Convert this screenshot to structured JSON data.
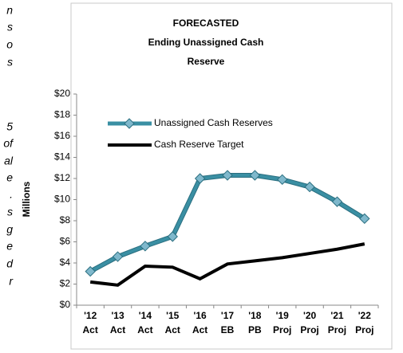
{
  "clipped_text": [
    "n",
    "s",
    "o",
    "s",
    "5",
    "of",
    "al",
    "e",
    ".",
    "s",
    "g",
    "e",
    "d",
    "r"
  ],
  "chart_data": {
    "type": "line",
    "title": [
      "FORECASTED",
      "Ending Unassigned Cash",
      "Reserve"
    ],
    "ylabel": "Millions",
    "categories": [
      "'12 Act",
      "'13 Act",
      "'14 Act",
      "'15 Act",
      "'16 Act",
      "'17 EB",
      "'18 PB",
      "'19 Proj",
      "'20 Proj",
      "'21 Proj",
      "'22 Proj"
    ],
    "series": [
      {
        "name": "Unassigned Cash Reserves",
        "color": "#3a8fa3",
        "marker": "diamond",
        "values": [
          3.2,
          4.6,
          5.6,
          6.5,
          12.0,
          12.3,
          12.3,
          11.9,
          11.2,
          9.8,
          8.2
        ]
      },
      {
        "name": "Cash Reserve Target",
        "color": "#000000",
        "values": [
          2.2,
          1.9,
          3.7,
          3.6,
          2.5,
          3.9,
          4.2,
          4.5,
          4.9,
          5.3,
          5.8
        ]
      }
    ],
    "ylim": [
      0,
      20
    ],
    "yticks": [
      {
        "value": 0,
        "label": "$0"
      },
      {
        "value": 2,
        "label": "$2"
      },
      {
        "value": 4,
        "label": "$4"
      },
      {
        "value": 6,
        "label": "$6"
      },
      {
        "value": 8,
        "label": "$8"
      },
      {
        "value": 10,
        "label": "$10"
      },
      {
        "value": 12,
        "label": "$12"
      },
      {
        "value": 14,
        "label": "$14"
      },
      {
        "value": 16,
        "label": "$16"
      },
      {
        "value": 18,
        "label": "$18"
      },
      {
        "value": 20,
        "label": "$20"
      }
    ],
    "grid": false,
    "legend": "top-left"
  }
}
